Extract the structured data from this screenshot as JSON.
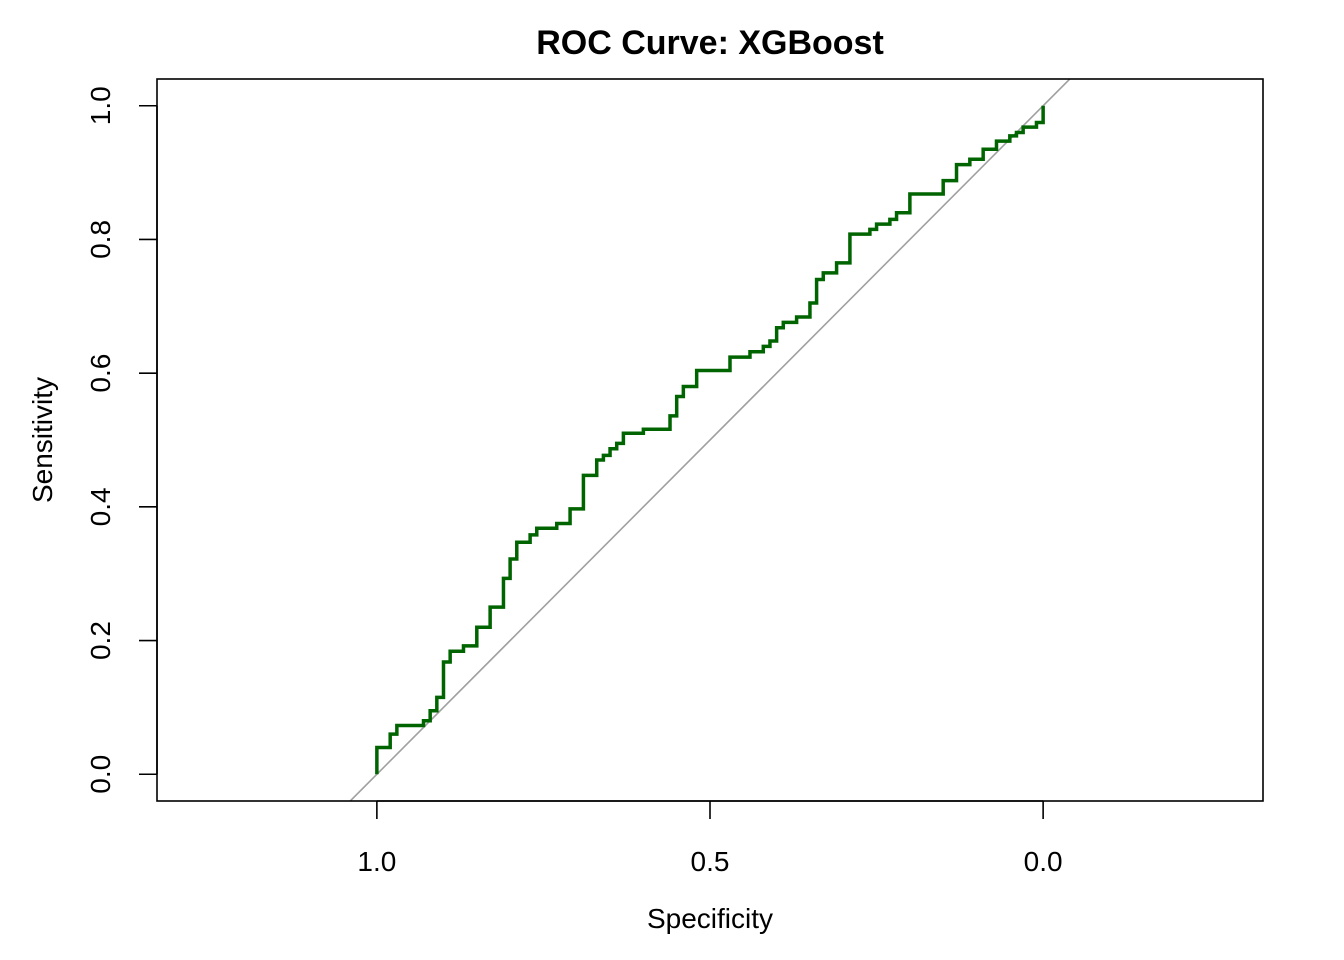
{
  "chart_data": {
    "type": "line",
    "title": "ROC Curve: XGBoost",
    "xlabel": "Specificity",
    "ylabel": "Sensitivity",
    "x_reversed": true,
    "xlim": [
      1.33,
      -0.33
    ],
    "ylim": [
      -0.04,
      1.04
    ],
    "x_ticks": [
      {
        "value": 1.0,
        "label": "1.0"
      },
      {
        "value": 0.5,
        "label": "0.5"
      },
      {
        "value": 0.0,
        "label": "0.0"
      }
    ],
    "y_ticks": [
      {
        "value": 0.0,
        "label": "0.0"
      },
      {
        "value": 0.2,
        "label": "0.2"
      },
      {
        "value": 0.4,
        "label": "0.4"
      },
      {
        "value": 0.6,
        "label": "0.6"
      },
      {
        "value": 0.8,
        "label": "0.8"
      },
      {
        "value": 1.0,
        "label": "1.0"
      }
    ],
    "grid": false,
    "reference_line": {
      "from": [
        1,
        0
      ],
      "to": [
        0,
        1
      ],
      "color": "#a0a0a0"
    },
    "series": [
      {
        "color": "#006400",
        "specificity": [
          1.0,
          1.0,
          0.98,
          0.98,
          0.97,
          0.97,
          0.93,
          0.93,
          0.92,
          0.92,
          0.91,
          0.91,
          0.9,
          0.9,
          0.89,
          0.89,
          0.87,
          0.87,
          0.85,
          0.85,
          0.83,
          0.83,
          0.81,
          0.81,
          0.8,
          0.8,
          0.79,
          0.79,
          0.77,
          0.77,
          0.76,
          0.76,
          0.73,
          0.73,
          0.71,
          0.71,
          0.69,
          0.69,
          0.67,
          0.67,
          0.66,
          0.66,
          0.65,
          0.65,
          0.64,
          0.64,
          0.63,
          0.63,
          0.6,
          0.6,
          0.56,
          0.56,
          0.55,
          0.55,
          0.54,
          0.54,
          0.52,
          0.52,
          0.47,
          0.47,
          0.44,
          0.44,
          0.42,
          0.42,
          0.41,
          0.41,
          0.4,
          0.4,
          0.39,
          0.39,
          0.37,
          0.37,
          0.35,
          0.35,
          0.34,
          0.34,
          0.33,
          0.33,
          0.31,
          0.31,
          0.29,
          0.29,
          0.26,
          0.26,
          0.25,
          0.25,
          0.23,
          0.23,
          0.22,
          0.22,
          0.2,
          0.2,
          0.15,
          0.15,
          0.13,
          0.13,
          0.11,
          0.11,
          0.09,
          0.09,
          0.07,
          0.07,
          0.05,
          0.05,
          0.04,
          0.04,
          0.03,
          0.03,
          0.01,
          0.01,
          0.0,
          0.0
        ],
        "sensitivity": [
          0.0,
          0.04,
          0.04,
          0.06,
          0.06,
          0.073,
          0.073,
          0.08,
          0.08,
          0.095,
          0.095,
          0.115,
          0.115,
          0.168,
          0.168,
          0.184,
          0.184,
          0.192,
          0.192,
          0.22,
          0.22,
          0.25,
          0.25,
          0.293,
          0.293,
          0.322,
          0.322,
          0.347,
          0.347,
          0.358,
          0.358,
          0.368,
          0.368,
          0.375,
          0.375,
          0.397,
          0.397,
          0.447,
          0.447,
          0.47,
          0.47,
          0.477,
          0.477,
          0.487,
          0.487,
          0.495,
          0.495,
          0.51,
          0.51,
          0.516,
          0.516,
          0.536,
          0.536,
          0.565,
          0.565,
          0.58,
          0.58,
          0.604,
          0.604,
          0.624,
          0.624,
          0.632,
          0.632,
          0.64,
          0.64,
          0.648,
          0.648,
          0.668,
          0.668,
          0.676,
          0.676,
          0.684,
          0.684,
          0.705,
          0.705,
          0.74,
          0.74,
          0.75,
          0.75,
          0.765,
          0.765,
          0.808,
          0.808,
          0.815,
          0.815,
          0.823,
          0.823,
          0.83,
          0.83,
          0.84,
          0.84,
          0.868,
          0.868,
          0.888,
          0.888,
          0.912,
          0.912,
          0.92,
          0.92,
          0.935,
          0.935,
          0.947,
          0.947,
          0.955,
          0.955,
          0.96,
          0.96,
          0.968,
          0.968,
          0.975,
          0.975,
          1.0
        ]
      }
    ]
  }
}
